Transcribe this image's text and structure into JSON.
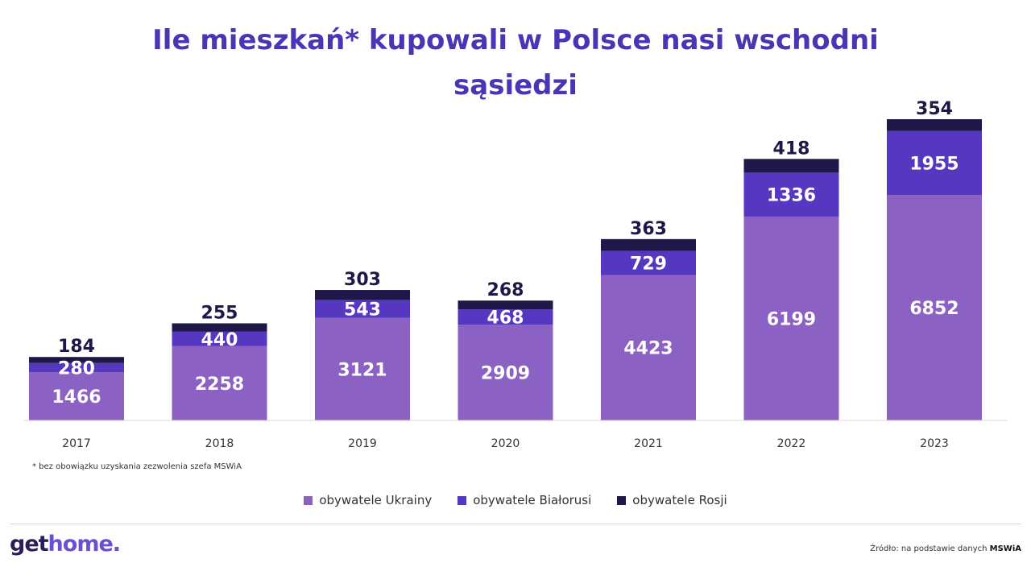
{
  "chart_data": {
    "type": "bar",
    "stacked": true,
    "title": "Ile mieszkań* kupowali w Polsce nasi wschodni sąsiedzi",
    "categories": [
      "2017",
      "2018",
      "2019",
      "2020",
      "2021",
      "2022",
      "2023"
    ],
    "series": [
      {
        "name": "obywatele Ukrainy",
        "color": "#8b62c4",
        "values": [
          1466,
          2258,
          3121,
          2909,
          4423,
          6199,
          6852
        ]
      },
      {
        "name": "obywatele Białorusi",
        "color": "#5537c0",
        "values": [
          280,
          440,
          543,
          468,
          729,
          1336,
          1955
        ]
      },
      {
        "name": "obywatele Rosji",
        "color": "#1e1848",
        "values": [
          184,
          255,
          303,
          268,
          363,
          418,
          354
        ]
      }
    ],
    "legend_position": "bottom",
    "grid": false
  },
  "footnote": "* bez obowiązku uzyskania zezwolenia szefa MSWiA",
  "brand": {
    "part1": "get",
    "part2": "home."
  },
  "source": {
    "prefix": "Źródło: na podstawie danych",
    "name": "MSWiA"
  }
}
